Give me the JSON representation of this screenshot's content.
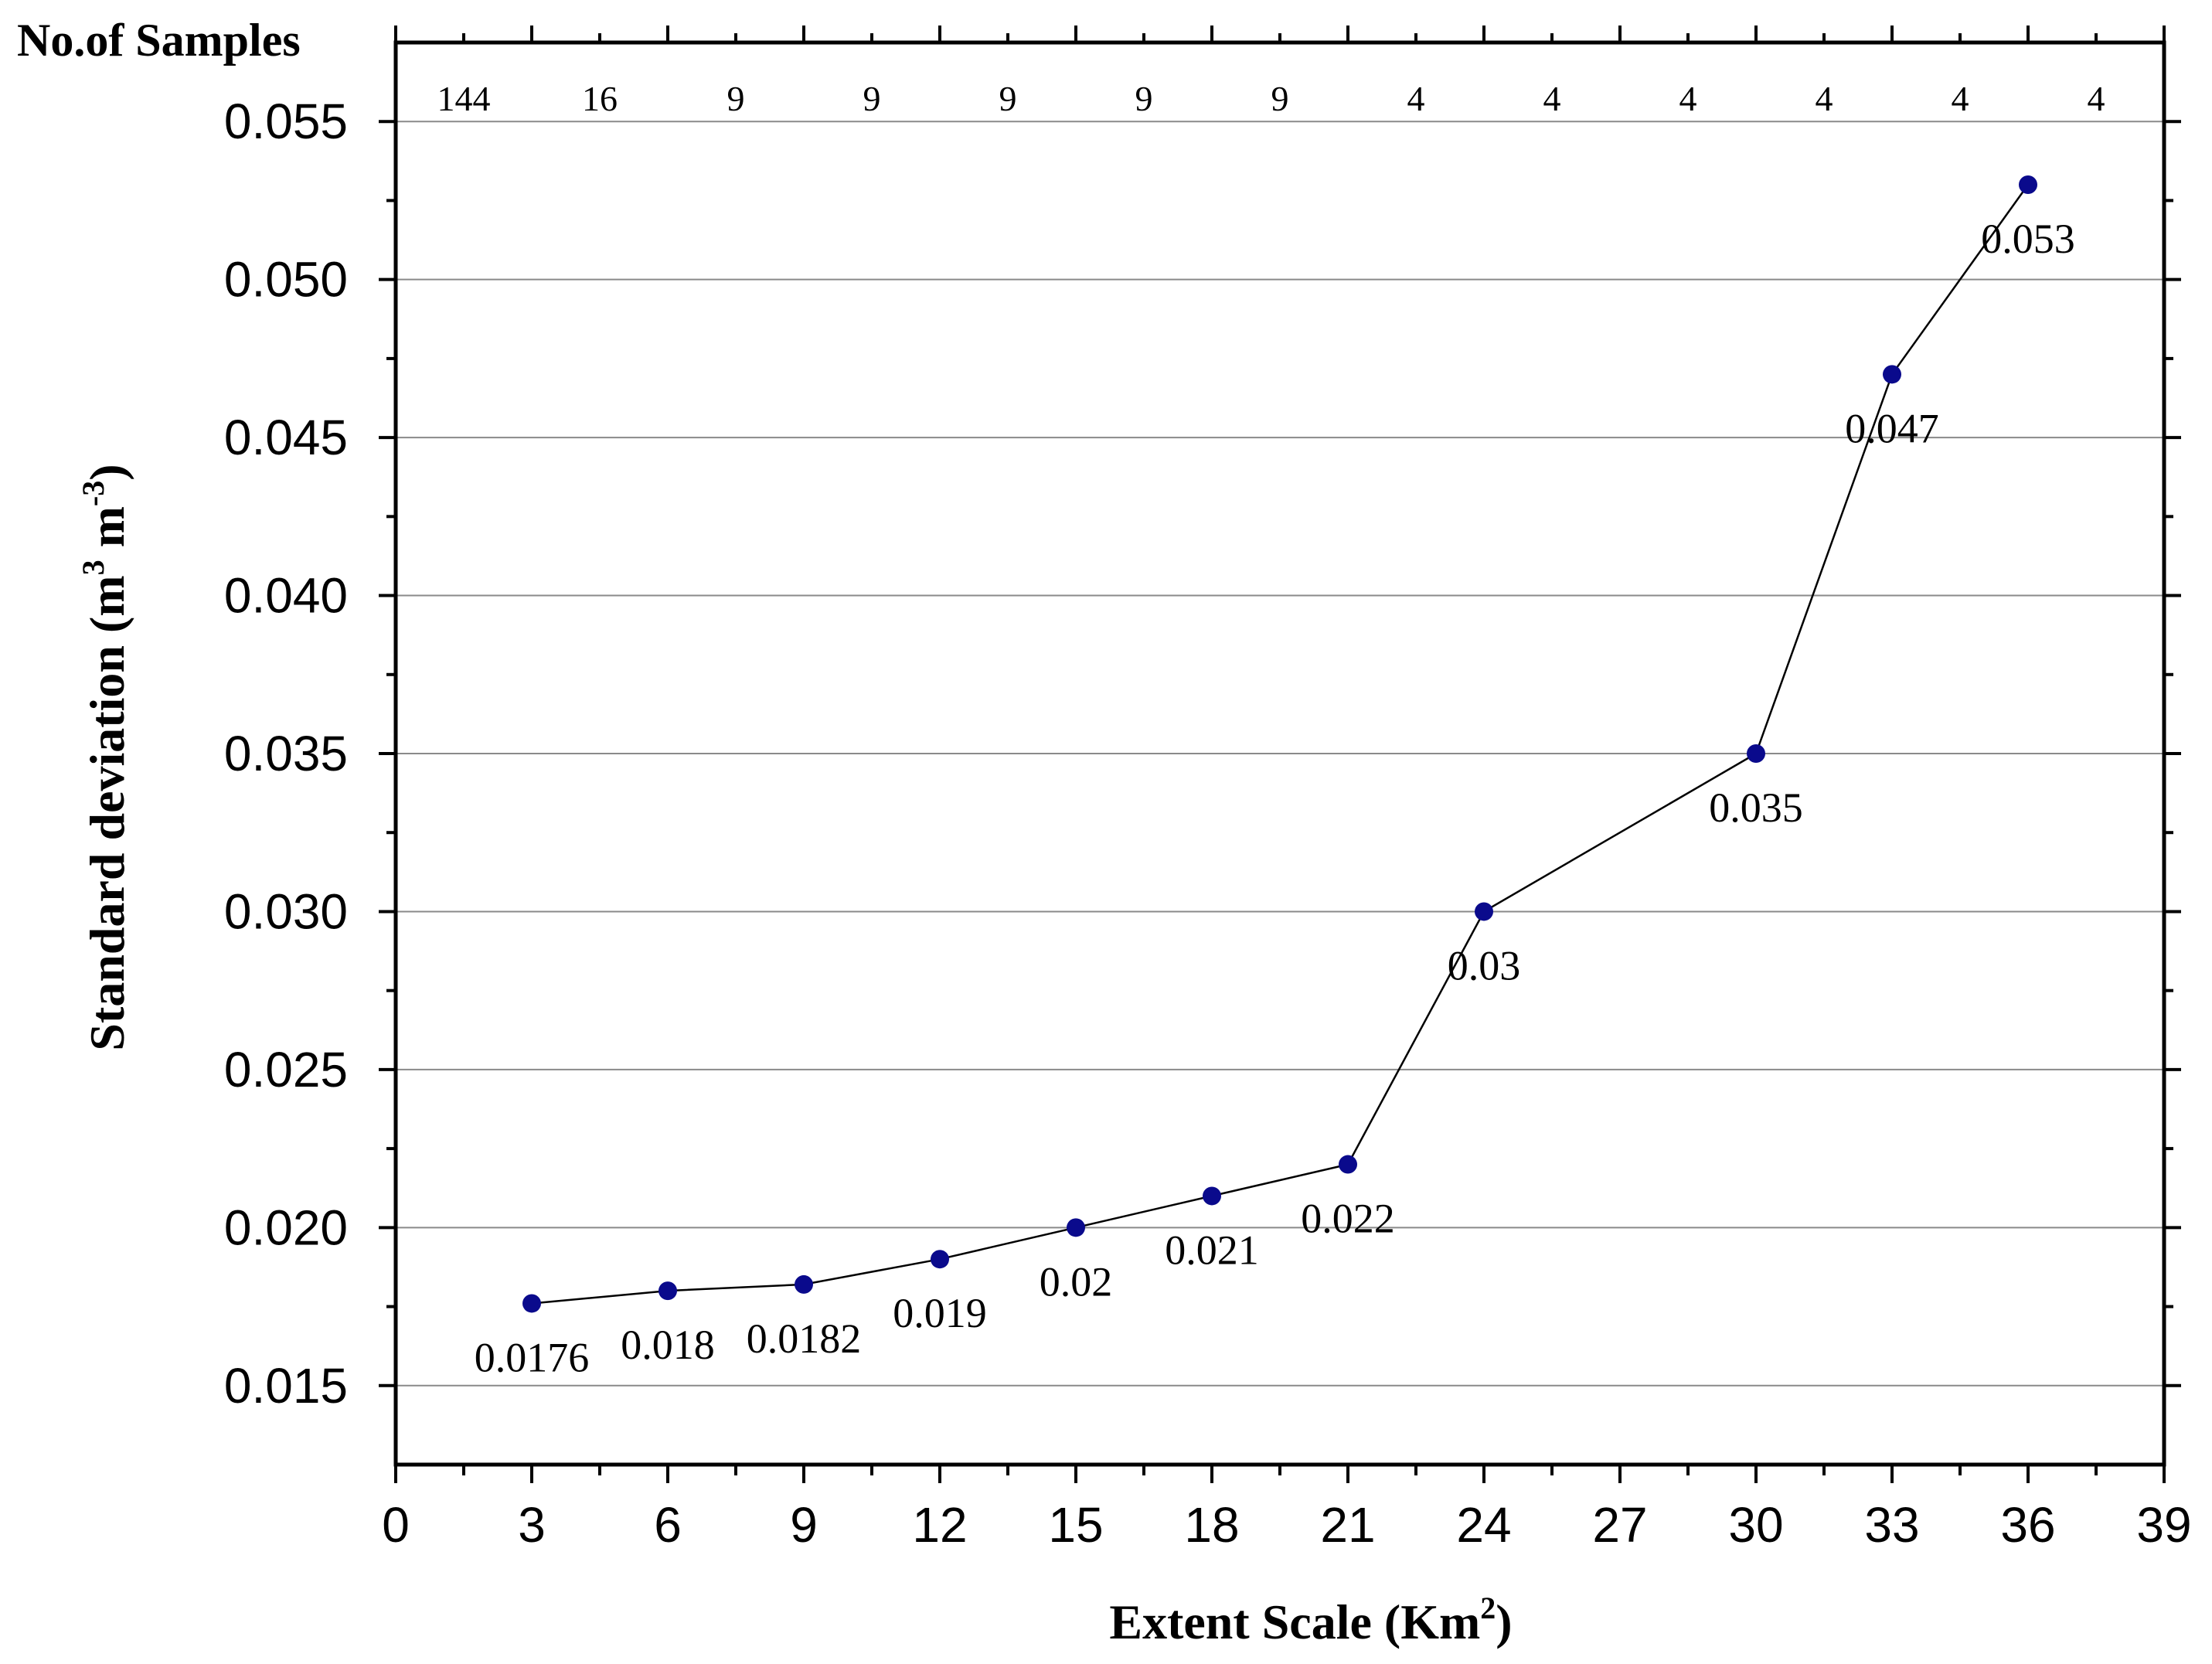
{
  "chart_data": {
    "type": "line",
    "title": "",
    "xlabel": "Extent Scale (Km",
    "xlabel_sup": "2",
    "xlabel_end": ")",
    "ylabel": "Standard deviation (m",
    "ylabel_sup1": "3",
    "ylabel_mid": " m",
    "ylabel_sup2": "-3",
    "ylabel_end": ")",
    "xlim": [
      0,
      39
    ],
    "ylim": [
      0.0125,
      0.0575
    ],
    "xticks": [
      0,
      3,
      6,
      9,
      12,
      15,
      18,
      21,
      24,
      27,
      30,
      33,
      36,
      39
    ],
    "xtick_labels": [
      "0",
      "3",
      "6",
      "9",
      "12",
      "15",
      "18",
      "21",
      "24",
      "27",
      "30",
      "33",
      "36",
      "39"
    ],
    "yticks": [
      0.015,
      0.02,
      0.025,
      0.03,
      0.035,
      0.04,
      0.045,
      0.05,
      0.055
    ],
    "ytick_labels": [
      "0.015",
      "0.020",
      "0.025",
      "0.030",
      "0.035",
      "0.040",
      "0.045",
      "0.050",
      "0.055"
    ],
    "grid": true,
    "series": [
      {
        "name": "Standard deviation",
        "x": [
          3,
          6,
          9,
          12,
          15,
          18,
          21,
          24,
          30,
          33,
          36
        ],
        "y": [
          0.0176,
          0.018,
          0.0182,
          0.019,
          0.02,
          0.021,
          0.022,
          0.03,
          0.035,
          0.047,
          0.053
        ],
        "labels": [
          "0.0176",
          "0.018",
          "0.0182",
          "0.019",
          "0.02",
          "0.021",
          "0.022",
          "0.03",
          "0.035",
          "0.047",
          "0.053"
        ]
      }
    ],
    "top_axis": {
      "title": "No.of Samples",
      "positions": [
        1.5,
        4.5,
        7.5,
        10.5,
        13.5,
        16.5,
        19.5,
        22.5,
        25.5,
        28.5,
        31.5,
        34.5,
        37.5
      ],
      "labels": [
        "144",
        "16",
        "9",
        "9",
        "9",
        "9",
        "9",
        "4",
        "4",
        "4",
        "4",
        "4",
        "4"
      ]
    },
    "colors": {
      "marker": "#0a0a8c",
      "line": "#000000",
      "grid": "#8a8a8a"
    }
  }
}
